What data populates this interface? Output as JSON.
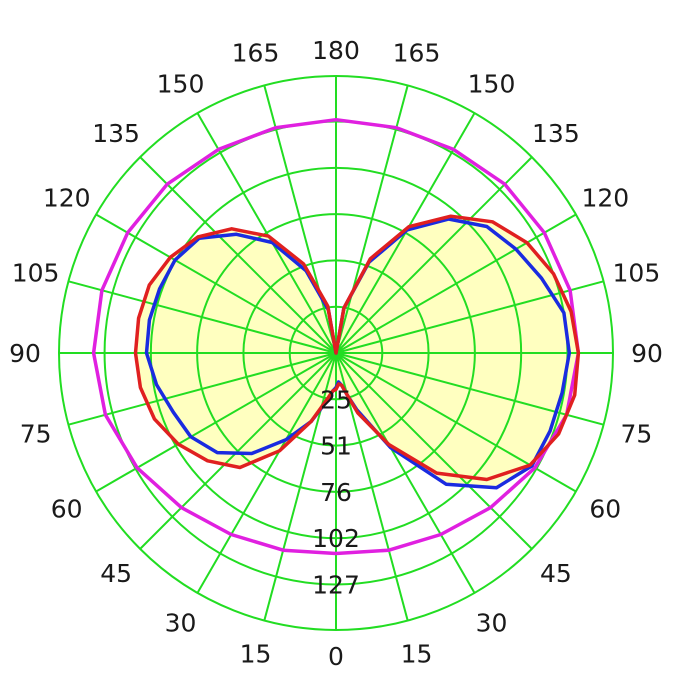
{
  "chart_data": {
    "type": "polar",
    "angle_ticks": {
      "left": [
        "0",
        "15",
        "30",
        "45",
        "60",
        "75",
        "90",
        "105",
        "120",
        "135",
        "150",
        "165",
        "180"
      ],
      "right": [
        "0",
        "15",
        "30",
        "45",
        "60",
        "75",
        "90",
        "105",
        "120",
        "135",
        "150",
        "165",
        "180"
      ]
    },
    "radial_ticks": [
      "25",
      "51",
      "76",
      "102",
      "127"
    ],
    "rmax": 152,
    "grid": true,
    "colors": {
      "grid": "#22dd22",
      "fill": "#ffffc0",
      "red": "#e02020",
      "blue": "#1a2be0",
      "magenta": "#e020e0"
    },
    "series": [
      {
        "color": "magenta",
        "points": [
          [
            0,
            110
          ],
          [
            15,
            112
          ],
          [
            30,
            115
          ],
          [
            45,
            120
          ],
          [
            60,
            126
          ],
          [
            75,
            131
          ],
          [
            90,
            133
          ],
          [
            105,
            133
          ],
          [
            120,
            132
          ],
          [
            135,
            131
          ],
          [
            150,
            129
          ],
          [
            165,
            128
          ],
          [
            180,
            128
          ],
          [
            195,
            128
          ],
          [
            210,
            129
          ],
          [
            225,
            131
          ],
          [
            240,
            132
          ],
          [
            255,
            133
          ],
          [
            270,
            133
          ],
          [
            285,
            131
          ],
          [
            300,
            126
          ],
          [
            315,
            120
          ],
          [
            330,
            115
          ],
          [
            345,
            112
          ],
          [
            360,
            110
          ]
        ]
      },
      {
        "color": "red",
        "points": [
          [
            0,
            20
          ],
          [
            5,
            17
          ],
          [
            10,
            18
          ],
          [
            15,
            24
          ],
          [
            20,
            35
          ],
          [
            30,
            58
          ],
          [
            40,
            86
          ],
          [
            50,
            108
          ],
          [
            60,
            123
          ],
          [
            70,
            130
          ],
          [
            80,
            133
          ],
          [
            90,
            133
          ],
          [
            100,
            131
          ],
          [
            110,
            127
          ],
          [
            120,
            121
          ],
          [
            130,
            112
          ],
          [
            140,
            98
          ],
          [
            150,
            80
          ],
          [
            160,
            55
          ],
          [
            170,
            25
          ],
          [
            180,
            0
          ],
          [
            190,
            26
          ],
          [
            200,
            52
          ],
          [
            210,
            74
          ],
          [
            220,
            89
          ],
          [
            230,
            99
          ],
          [
            240,
            105
          ],
          [
            250,
            109
          ],
          [
            260,
            110
          ],
          [
            270,
            110
          ],
          [
            280,
            109
          ],
          [
            290,
            106
          ],
          [
            300,
            100
          ],
          [
            310,
            92
          ],
          [
            320,
            82
          ],
          [
            330,
            62
          ],
          [
            340,
            40
          ],
          [
            350,
            25
          ],
          [
            355,
            21
          ],
          [
            360,
            20
          ]
        ]
      },
      {
        "color": "blue",
        "points": [
          [
            0,
            19
          ],
          [
            5,
            16
          ],
          [
            10,
            18
          ],
          [
            15,
            24
          ],
          [
            20,
            33
          ],
          [
            30,
            60
          ],
          [
            40,
            94
          ],
          [
            50,
            115
          ],
          [
            60,
            124
          ],
          [
            70,
            125
          ],
          [
            80,
            126
          ],
          [
            90,
            128
          ],
          [
            100,
            127
          ],
          [
            110,
            120
          ],
          [
            120,
            114
          ],
          [
            130,
            108
          ],
          [
            140,
            96
          ],
          [
            150,
            78
          ],
          [
            160,
            53
          ],
          [
            170,
            25
          ],
          [
            180,
            0
          ],
          [
            190,
            24
          ],
          [
            200,
            48
          ],
          [
            210,
            70
          ],
          [
            220,
            85
          ],
          [
            230,
            98
          ],
          [
            240,
            102
          ],
          [
            250,
            103
          ],
          [
            260,
            104
          ],
          [
            270,
            104
          ],
          [
            280,
            100
          ],
          [
            290,
            95
          ],
          [
            300,
            92
          ],
          [
            310,
            85
          ],
          [
            320,
            72
          ],
          [
            330,
            55
          ],
          [
            340,
            40
          ],
          [
            350,
            26
          ],
          [
            355,
            21
          ],
          [
            360,
            19
          ]
        ]
      }
    ]
  }
}
